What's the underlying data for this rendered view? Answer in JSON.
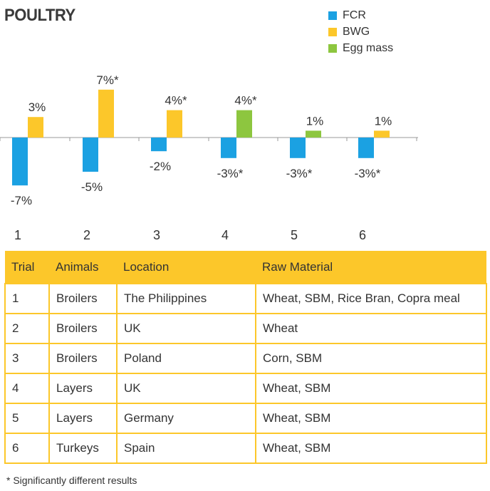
{
  "title": "POULTRY",
  "chart_data": {
    "type": "bar",
    "categories": [
      "1",
      "2",
      "3",
      "4",
      "5",
      "6"
    ],
    "series": [
      {
        "name": "FCR",
        "color": "#1ba1e2",
        "values": [
          -7,
          -5,
          -2,
          -3,
          -3,
          -3
        ],
        "labels": [
          "-7%",
          "-5%",
          "-2%",
          "-3%*",
          "-3%*",
          "-3%*"
        ]
      },
      {
        "name": "BWG",
        "color": "#fcc72a",
        "values": [
          3,
          7,
          4,
          null,
          null,
          1
        ],
        "labels": [
          "3%",
          "7%*",
          "4%*",
          "",
          "",
          "1%"
        ]
      },
      {
        "name": "Egg mass",
        "color": "#8dc63f",
        "values": [
          null,
          null,
          null,
          4,
          1,
          null
        ],
        "labels": [
          "",
          "",
          "",
          "4%*",
          "1%",
          ""
        ]
      }
    ],
    "legend_position": "top-right",
    "grid": false
  },
  "table": {
    "headers": [
      "Trial",
      "Animals",
      "Location",
      "Raw Material"
    ],
    "rows": [
      [
        "1",
        "Broilers",
        "The Philippines",
        "Wheat, SBM, Rice Bran, Copra meal"
      ],
      [
        "2",
        "Broilers",
        "UK",
        "Wheat"
      ],
      [
        "3",
        "Broilers",
        "Poland",
        "Corn, SBM"
      ],
      [
        "4",
        "Layers",
        "UK",
        "Wheat, SBM"
      ],
      [
        "5",
        "Layers",
        "Germany",
        "Wheat, SBM"
      ],
      [
        "6",
        "Turkeys",
        "Spain",
        "Wheat, SBM"
      ]
    ]
  },
  "footnote": "* Significantly different results"
}
